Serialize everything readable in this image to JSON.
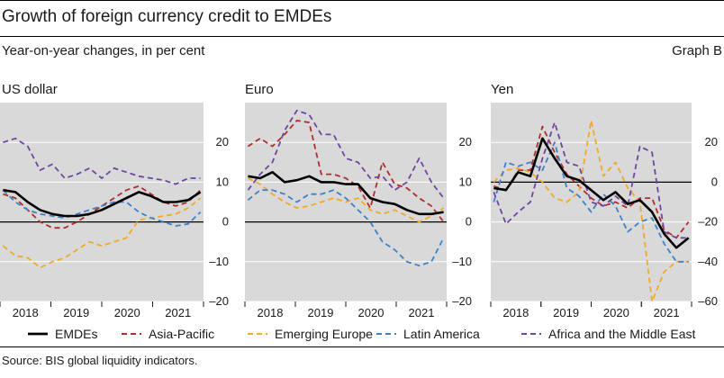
{
  "header": {
    "title": "Growth of foreign currency credit to EMDEs",
    "subtitle": "Year-on-year changes, in per cent",
    "graph_label": "Graph B"
  },
  "footer": {
    "source": "Source: BIS global liquidity indicators."
  },
  "colors": {
    "panel_bg": "#d9d9d9",
    "grid": "#ffffff",
    "EMDEs": "#000000",
    "Asia-Pacific": "#b22d2d",
    "Emerging Europe": "#f0aa28",
    "Latin America": "#3c82c8",
    "Africa and the Middle East": "#6e46a0"
  },
  "legend": [
    {
      "name": "EMDEs",
      "style": "solid"
    },
    {
      "name": "Asia-Pacific",
      "style": "dashed"
    },
    {
      "name": "Emerging Europe",
      "style": "dashed"
    },
    {
      "name": "Latin America",
      "style": "dashed"
    },
    {
      "name": "Africa and the Middle East",
      "style": "dashed"
    }
  ],
  "chart_data": [
    {
      "type": "line",
      "title": "US dollar",
      "x_start": 2017.5,
      "x_end": 2021.5,
      "x_ticks": [
        "2018",
        "2019",
        "2020",
        "2021"
      ],
      "x_tick_values": [
        2018,
        2019,
        2020,
        2021
      ],
      "y_axis_side": "right",
      "ylim": [
        -20,
        30
      ],
      "y_ticks": [
        -20,
        -10,
        0,
        10,
        20
      ],
      "y_tick_labels": [
        "–20",
        "–10",
        "0",
        "10",
        "20"
      ],
      "zero_line": 0,
      "series": [
        {
          "name": "EMDEs",
          "values": [
            8,
            7.5,
            5,
            3,
            2,
            1.5,
            1.5,
            2,
            3,
            4.5,
            6,
            7.5,
            6.5,
            5,
            5,
            5.5,
            7.5
          ]
        },
        {
          "name": "Asia-Pacific",
          "values": [
            7,
            6,
            3,
            0,
            -1.5,
            -1.5,
            0,
            2,
            4,
            6,
            8,
            9,
            7,
            5,
            4,
            5,
            8
          ]
        },
        {
          "name": "Emerging Europe",
          "values": [
            -6,
            -8.5,
            -9,
            -11.5,
            -10,
            -9,
            -7,
            -5,
            -6,
            -5,
            -4,
            0.5,
            1,
            1.5,
            2,
            3.5,
            6
          ]
        },
        {
          "name": "Latin America",
          "values": [
            8,
            5,
            3,
            2,
            1.5,
            1,
            2,
            3,
            4,
            5,
            5,
            2.5,
            1,
            0,
            -1,
            -0.5,
            2.5
          ]
        },
        {
          "name": "Africa and the Middle East",
          "values": [
            20,
            21,
            19,
            13,
            14.5,
            11,
            12,
            13.5,
            11,
            13.5,
            12.5,
            11.5,
            11,
            10.5,
            9.5,
            11,
            11
          ]
        }
      ]
    },
    {
      "type": "line",
      "title": "Euro",
      "x_start": 2017.5,
      "x_end": 2021.5,
      "x_ticks": [
        "2018",
        "2019",
        "2020",
        "2021"
      ],
      "x_tick_values": [
        2018,
        2019,
        2020,
        2021
      ],
      "y_axis_side": "right",
      "ylim": [
        -20,
        30
      ],
      "y_ticks": [
        -20,
        -10,
        0,
        10,
        20
      ],
      "y_tick_labels": [
        "–20",
        "–10",
        "0",
        "10",
        "20"
      ],
      "zero_line": 0,
      "series": [
        {
          "name": "EMDEs",
          "values": [
            11.5,
            11,
            12.5,
            10,
            10.5,
            11.5,
            10,
            10,
            9.5,
            9.5,
            6,
            5,
            4.5,
            3,
            2,
            2,
            2.5
          ]
        },
        {
          "name": "Asia-Pacific",
          "values": [
            19,
            21,
            19,
            22,
            25.5,
            25,
            12,
            12,
            11,
            9,
            3.5,
            15,
            9.5,
            8.5,
            6,
            4,
            0
          ]
        },
        {
          "name": "Emerging Europe",
          "values": [
            11,
            9.5,
            7,
            5,
            3.5,
            4,
            5,
            6,
            5,
            6,
            3,
            2,
            3,
            1.5,
            0,
            1.5,
            3.5
          ]
        },
        {
          "name": "Latin America",
          "values": [
            5.5,
            8,
            8,
            7,
            5,
            7,
            7,
            8,
            6,
            3,
            0,
            -5,
            -7,
            -10,
            -11,
            -10,
            -4
          ]
        },
        {
          "name": "Africa and the Middle East",
          "values": [
            8,
            12,
            15,
            23,
            28,
            27,
            22,
            22,
            16,
            15,
            11,
            11.5,
            8,
            10,
            16,
            10,
            6
          ]
        }
      ]
    },
    {
      "type": "line",
      "title": "Yen",
      "x_start": 2017.5,
      "x_end": 2021.5,
      "x_ticks": [
        "2018",
        "2019",
        "2020",
        "2021"
      ],
      "x_tick_values": [
        2018,
        2019,
        2020,
        2021
      ],
      "y_axis_side": "right",
      "ylim": [
        -60,
        40
      ],
      "y_ticks": [
        -60,
        -40,
        -20,
        0,
        20
      ],
      "y_tick_labels": [
        "–60",
        "–40",
        "–20",
        "0",
        "20"
      ],
      "zero_line": 0,
      "series": [
        {
          "name": "EMDEs",
          "values": [
            -3,
            -4,
            5,
            3,
            22,
            12,
            3,
            1,
            -4,
            -9,
            -5,
            -11,
            -9,
            -15,
            -26,
            -33,
            -28
          ]
        },
        {
          "name": "Asia-Pacific",
          "values": [
            -2,
            -4,
            6,
            6,
            28,
            15,
            4,
            -2,
            -8,
            -12,
            -10,
            -13,
            -8,
            -8,
            -24,
            -28,
            -20
          ]
        },
        {
          "name": "Emerging Europe",
          "values": [
            0,
            6,
            7,
            5,
            0,
            -8,
            -10,
            -5,
            31,
            3,
            10,
            -3,
            -10,
            -60,
            -45,
            -40,
            -40
          ]
        },
        {
          "name": "Latin America",
          "values": [
            -10,
            10,
            8,
            10,
            6,
            20,
            -3,
            -7,
            -15,
            -6,
            -12,
            -25,
            -20,
            -18,
            -31,
            -40,
            -40
          ]
        },
        {
          "name": "Africa and the Middle East",
          "values": [
            -5,
            -21,
            -15,
            -10,
            12,
            30,
            10,
            8,
            -10,
            -12,
            -7,
            -12,
            18,
            15,
            -25,
            -28,
            -28
          ]
        }
      ]
    }
  ]
}
